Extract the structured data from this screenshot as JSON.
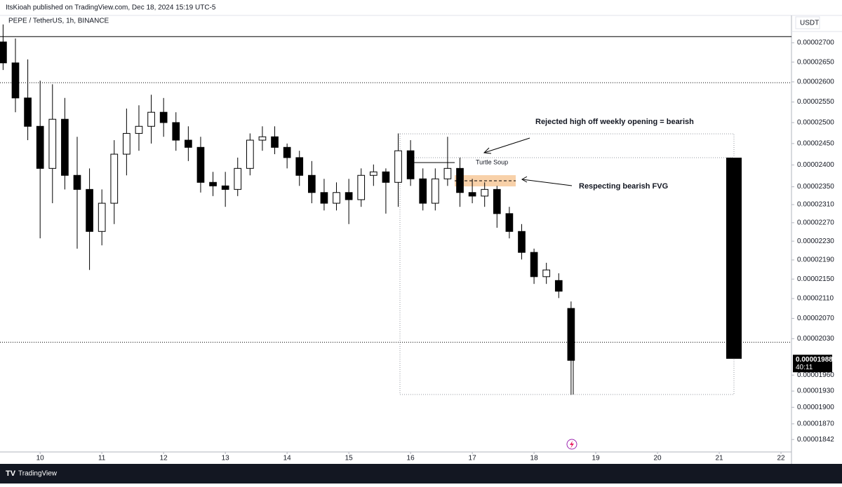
{
  "header": {
    "publisher": "ItsKioah published on TradingView.com, Dec 18, 2024 15:19 UTC-5"
  },
  "footer": {
    "brand": "TradingView"
  },
  "chart_data": {
    "type": "candlestick",
    "title": "PEPE / TetherUS, 1h, BINANCE",
    "currency": "USDT",
    "log_scale": true,
    "grid": false,
    "up_color": "#ffffff",
    "down_color": "#000000",
    "x": [
      9.4,
      9.6,
      9.8,
      10.0,
      10.2,
      10.4,
      10.6,
      10.8,
      11.0,
      11.2,
      11.4,
      11.6,
      11.8,
      12.0,
      12.2,
      12.4,
      12.6,
      12.8,
      13.0,
      13.2,
      13.4,
      13.6,
      13.8,
      14.0,
      14.2,
      14.4,
      14.6,
      14.8,
      15.0,
      15.2,
      15.4,
      15.6,
      15.8,
      16.0,
      16.2,
      16.4,
      16.6,
      16.8,
      17.0,
      17.2,
      17.4,
      17.6,
      17.8,
      18.0,
      18.2,
      18.4,
      18.6
    ],
    "open": [
      2.702e-05,
      2.648e-05,
      2.56e-05,
      2.491e-05,
      2.392e-05,
      2.508e-05,
      2.376e-05,
      2.344e-05,
      2.251e-05,
      2.313e-05,
      2.425e-05,
      2.474e-05,
      2.491e-05,
      2.525e-05,
      2.5e-05,
      2.458e-05,
      2.441e-05,
      2.36e-05,
      2.352e-05,
      2.344e-05,
      2.392e-05,
      2.458e-05,
      2.466e-05,
      2.441e-05,
      2.417e-05,
      2.376e-05,
      2.337e-05,
      2.313e-05,
      2.337e-05,
      2.321e-05,
      2.376e-05,
      2.384e-05,
      2.36e-05,
      2.433e-05,
      2.368e-05,
      2.313e-05,
      2.368e-05,
      2.392e-05,
      2.337e-05,
      2.329e-05,
      2.344e-05,
      2.29e-05,
      2.251e-05,
      2.206e-05,
      2.155e-05,
      2.147e-05,
      2.09e-05
    ],
    "high": [
      2.748e-05,
      2.711e-05,
      2.657e-05,
      2.603e-05,
      2.594e-05,
      2.56e-05,
      2.466e-05,
      2.392e-05,
      2.344e-05,
      2.458e-05,
      2.534e-05,
      2.542e-05,
      2.568e-05,
      2.56e-05,
      2.525e-05,
      2.491e-05,
      2.466e-05,
      2.384e-05,
      2.384e-05,
      2.417e-05,
      2.474e-05,
      2.491e-05,
      2.491e-05,
      2.45e-05,
      2.433e-05,
      2.409e-05,
      2.368e-05,
      2.36e-05,
      2.368e-05,
      2.392e-05,
      2.401e-05,
      2.392e-05,
      2.474e-05,
      2.458e-05,
      2.392e-05,
      2.392e-05,
      2.466e-05,
      2.417e-05,
      2.368e-05,
      2.36e-05,
      2.352e-05,
      2.305e-05,
      2.267e-05,
      2.214e-05,
      2.184e-05,
      2.162e-05,
      2.104e-05
    ],
    "low": [
      2.63e-05,
      2.525e-05,
      2.458e-05,
      2.236e-05,
      2.313e-05,
      2.344e-05,
      2.214e-05,
      2.169e-05,
      2.221e-05,
      2.267e-05,
      2.376e-05,
      2.433e-05,
      2.45e-05,
      2.466e-05,
      2.433e-05,
      2.409e-05,
      2.337e-05,
      2.329e-05,
      2.305e-05,
      2.329e-05,
      2.376e-05,
      2.433e-05,
      2.425e-05,
      2.392e-05,
      2.352e-05,
      2.313e-05,
      2.297e-05,
      2.297e-05,
      2.267e-05,
      2.305e-05,
      2.352e-05,
      2.29e-05,
      2.305e-05,
      2.352e-05,
      2.297e-05,
      2.297e-05,
      2.352e-05,
      2.305e-05,
      2.313e-05,
      2.305e-05,
      2.259e-05,
      2.236e-05,
      2.191e-05,
      2.14e-05,
      2.14e-05,
      2.111e-05,
      1.923e-05
    ],
    "close": [
      2.648e-05,
      2.56e-05,
      2.491e-05,
      2.392e-05,
      2.508e-05,
      2.376e-05,
      2.344e-05,
      2.251e-05,
      2.313e-05,
      2.425e-05,
      2.474e-05,
      2.491e-05,
      2.525e-05,
      2.5e-05,
      2.458e-05,
      2.441e-05,
      2.36e-05,
      2.352e-05,
      2.344e-05,
      2.392e-05,
      2.458e-05,
      2.466e-05,
      2.441e-05,
      2.417e-05,
      2.376e-05,
      2.337e-05,
      2.313e-05,
      2.337e-05,
      2.321e-05,
      2.376e-05,
      2.384e-05,
      2.36e-05,
      2.433e-05,
      2.368e-05,
      2.313e-05,
      2.368e-05,
      2.392e-05,
      2.337e-05,
      2.329e-05,
      2.344e-05,
      2.29e-05,
      2.251e-05,
      2.206e-05,
      2.155e-05,
      2.169e-05,
      2.125e-05,
      1.988e-05
    ],
    "xlim": [
      9.35,
      22.17
    ],
    "xticks": [
      10,
      11,
      12,
      13,
      14,
      15,
      16,
      17,
      18,
      19,
      20,
      21,
      22
    ],
    "ylim": [
      1.82e-05,
      2.772e-05
    ],
    "yticks": [
      {
        "value": 2.7e-05,
        "label": "0.00002700"
      },
      {
        "value": 2.65e-05,
        "label": "0.00002650"
      },
      {
        "value": 2.6e-05,
        "label": "0.00002600"
      },
      {
        "value": 2.55e-05,
        "label": "0.00002550"
      },
      {
        "value": 2.5e-05,
        "label": "0.00002500"
      },
      {
        "value": 2.45e-05,
        "label": "0.00002450"
      },
      {
        "value": 2.4e-05,
        "label": "0.00002400"
      },
      {
        "value": 2.35e-05,
        "label": "0.00002350"
      },
      {
        "value": 2.31e-05,
        "label": "0.00002310"
      },
      {
        "value": 2.27e-05,
        "label": "0.00002270"
      },
      {
        "value": 2.23e-05,
        "label": "0.00002230"
      },
      {
        "value": 2.19e-05,
        "label": "0.00002190"
      },
      {
        "value": 2.15e-05,
        "label": "0.00002150"
      },
      {
        "value": 2.11e-05,
        "label": "0.00002110"
      },
      {
        "value": 2.07e-05,
        "label": "0.00002070"
      },
      {
        "value": 2.03e-05,
        "label": "0.00002030"
      },
      {
        "value": 1.96e-05,
        "label": "0.00001960"
      },
      {
        "value": 1.93e-05,
        "label": "0.00001930"
      },
      {
        "value": 1.9e-05,
        "label": "0.00001900"
      },
      {
        "value": 1.87e-05,
        "label": "0.00001870"
      },
      1.842e-05
    ],
    "last_price": 1.988e-05,
    "countdown": "40:11",
    "levels": [
      {
        "value": 2.716e-05,
        "style": "solid"
      },
      {
        "value": 2.598e-05,
        "style": "dotted"
      },
      {
        "value": 2.023e-05,
        "style": "dotted"
      }
    ],
    "annotations": [
      "Rejected high off weekly opening = bearish",
      "Respecting bearish FVG",
      "Turtle Soup"
    ]
  }
}
